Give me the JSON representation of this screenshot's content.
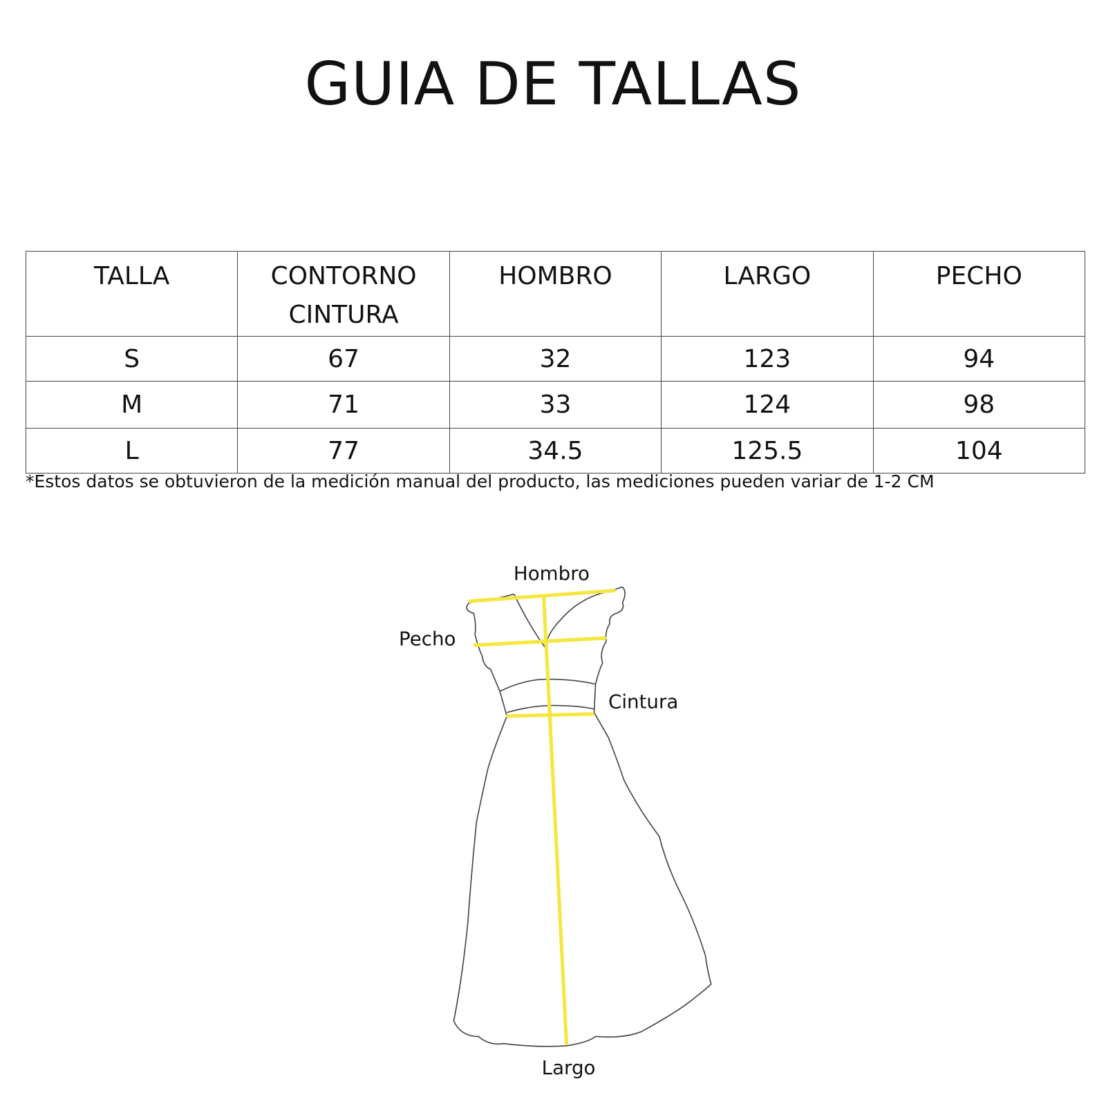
{
  "title": "GUIA DE TALLAS",
  "table": {
    "headers": [
      "TALLA",
      "CONTORNO CINTURA",
      "HOMBRO",
      "LARGO",
      "PECHO"
    ],
    "rows": [
      [
        "S",
        "67",
        "32",
        "123",
        "94"
      ],
      [
        "M",
        "71",
        "33",
        "124",
        "98"
      ],
      [
        "L",
        "77",
        "34.5",
        "125.5",
        "104"
      ]
    ]
  },
  "note": "*Estos datos se obtuvieron de la medición manual del producto, las mediciones pueden variar de 1-2 CM",
  "diagram": {
    "labels": {
      "shoulder": "Hombro",
      "chest": "Pecho",
      "waist": "Cintura",
      "length": "Largo"
    },
    "measure_color": "#f5e642",
    "outline_color": "#444444"
  }
}
